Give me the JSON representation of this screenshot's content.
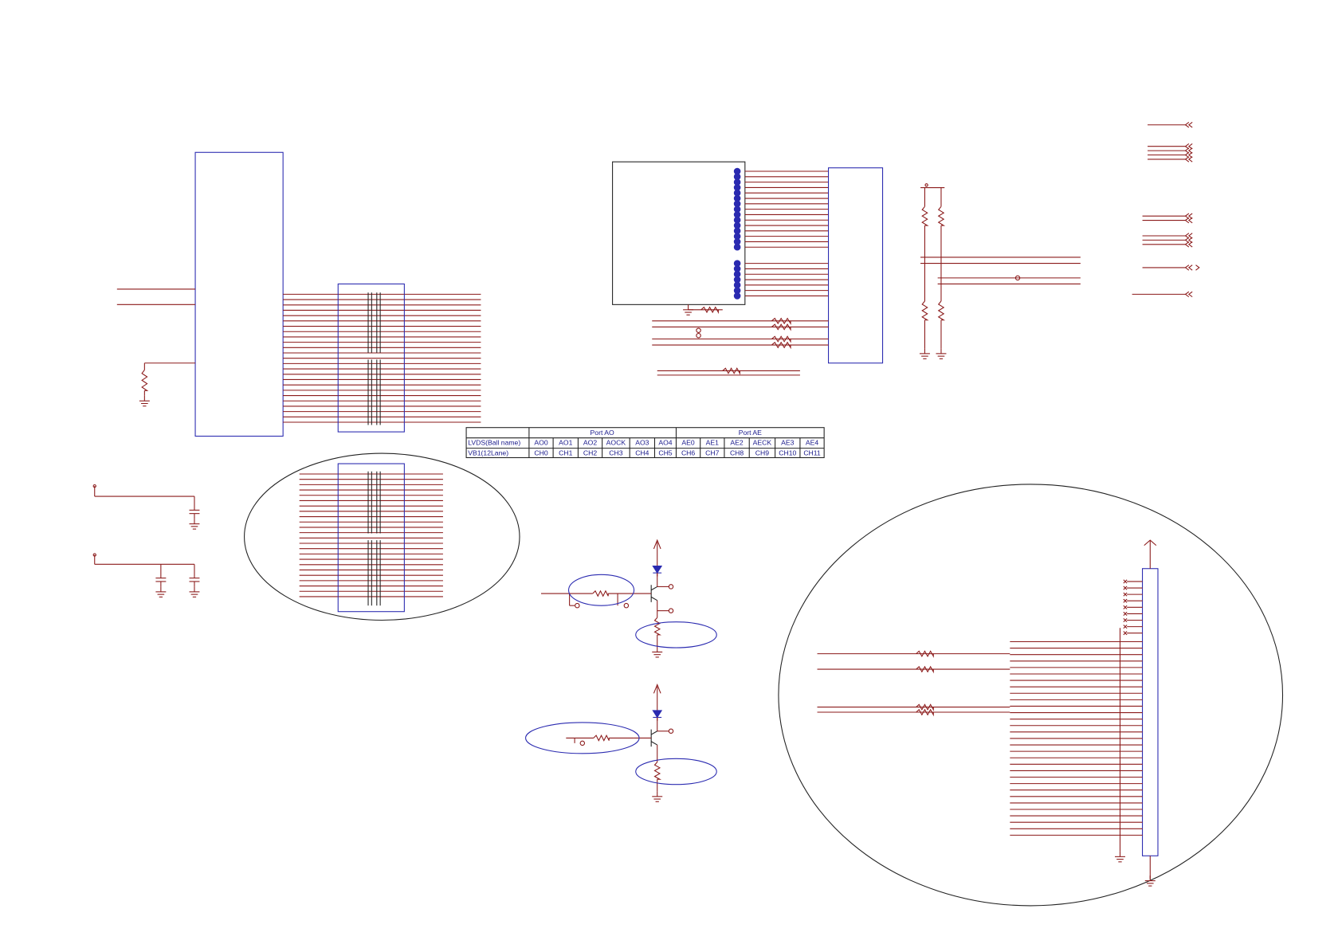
{
  "table": {
    "groups": [
      "Port AO",
      "Port AE"
    ],
    "rows": [
      [
        "LVDS(Ball name)",
        "AO0",
        "AO1",
        "AO2",
        "AOCK",
        "AO3",
        "AO4",
        "AE0",
        "AE1",
        "AE2",
        "AECK",
        "AE3",
        "AE4"
      ],
      [
        "VB1(12Lane)",
        "CH0",
        "CH1",
        "CH2",
        "CH3",
        "CH4",
        "CH5",
        "CH6",
        "CH7",
        "CH8",
        "CH9",
        "CH10",
        "CH11"
      ]
    ]
  }
}
